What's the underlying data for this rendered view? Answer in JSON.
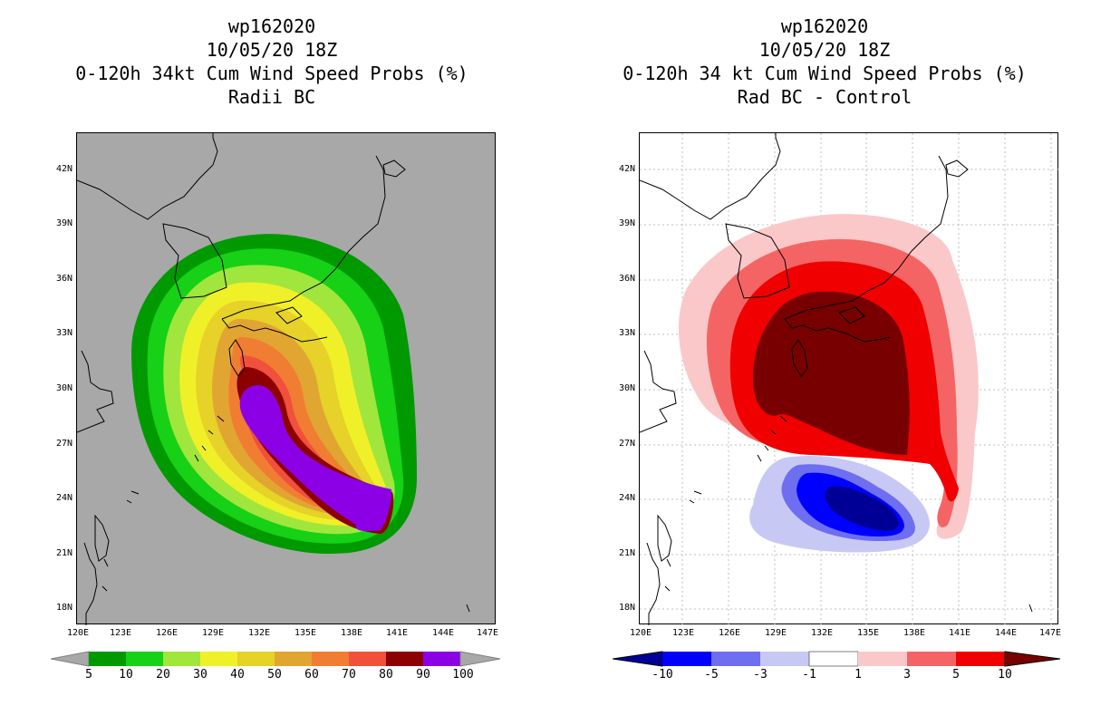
{
  "left": {
    "title_lines": [
      "wp162020",
      "10/05/20 18Z",
      "0-120h 34kt Cum Wind Speed Probs (%)",
      "Radii BC"
    ],
    "colorbar_labels": [
      "5",
      "10",
      "20",
      "30",
      "40",
      "50",
      "60",
      "70",
      "80",
      "90",
      "100"
    ],
    "colors": [
      "#009a00",
      "#16d116",
      "#a0e63c",
      "#f0f028",
      "#e6d228",
      "#e1a532",
      "#f07d32",
      "#f0503c",
      "#8c0000",
      "#8c00e6"
    ],
    "background": "#a8a8a8"
  },
  "right": {
    "title_lines": [
      "wp162020",
      "10/05/20 18Z",
      "0-120h 34 kt Cum Wind Speed Probs (%)",
      "Rad BC - Control"
    ],
    "colorbar_labels": [
      "-10",
      "-5",
      "-3",
      "-1",
      "1",
      "3",
      "5",
      "10"
    ],
    "colors": [
      "#000096",
      "#0000ff",
      "#6e6ef0",
      "#c8c8f5",
      "#ffffff",
      "#fac8c8",
      "#f56464",
      "#f00000",
      "#780000"
    ]
  },
  "axes": {
    "lat_labels": [
      "42N",
      "39N",
      "36N",
      "33N",
      "30N",
      "27N",
      "24N",
      "21N",
      "18N"
    ],
    "lon_labels": [
      "120E",
      "123E",
      "126E",
      "129E",
      "132E",
      "135E",
      "138E",
      "141E",
      "144E",
      "147E"
    ]
  }
}
